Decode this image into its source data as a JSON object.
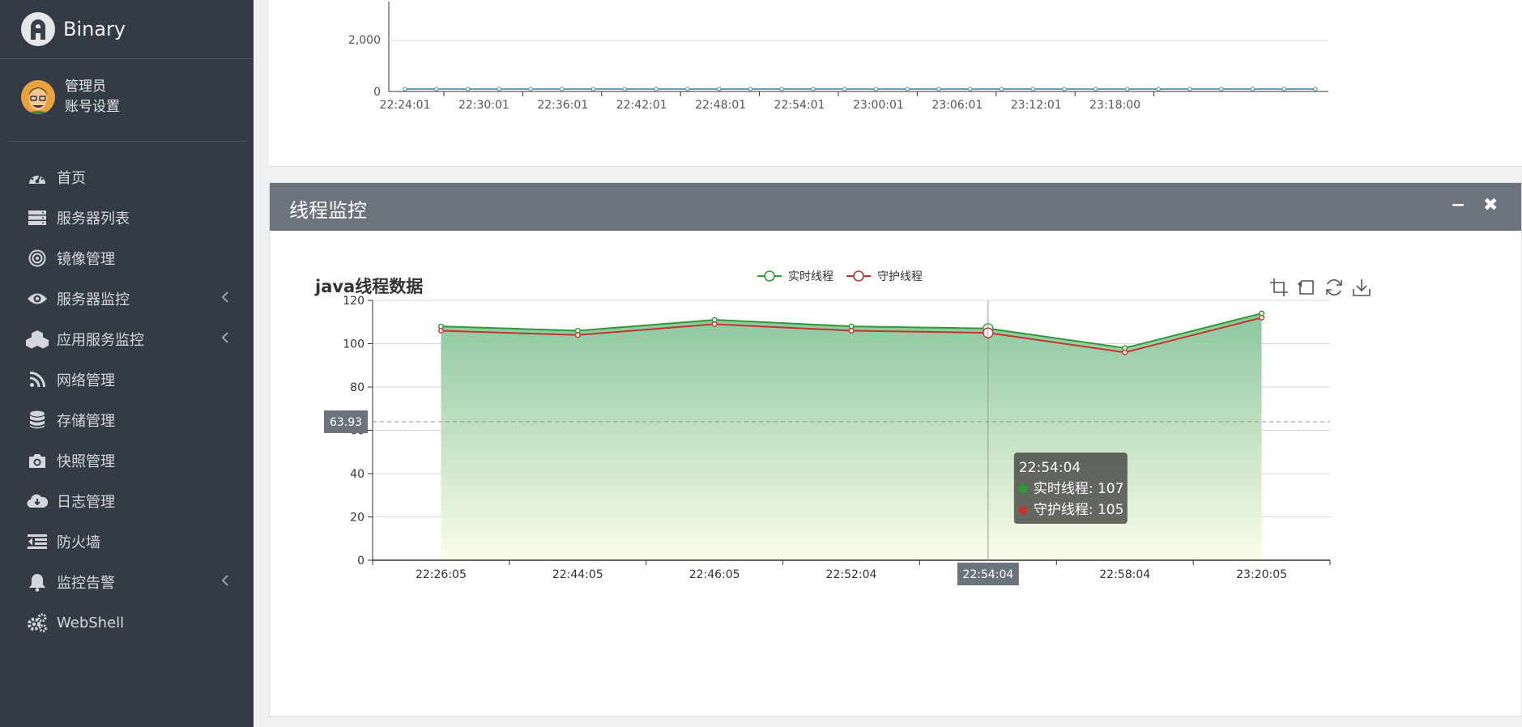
{
  "app": {
    "name": "Binary"
  },
  "user": {
    "name": "管理员",
    "settings_label": "账号设置"
  },
  "menu": [
    {
      "label": "首页",
      "icon": "dashboard-icon",
      "has_children": false
    },
    {
      "label": "服务器列表",
      "icon": "server-list-icon",
      "has_children": false
    },
    {
      "label": "镜像管理",
      "icon": "target-icon",
      "has_children": false
    },
    {
      "label": "服务器监控",
      "icon": "eye-icon",
      "has_children": true
    },
    {
      "label": "应用服务监控",
      "icon": "cubes-icon",
      "has_children": true
    },
    {
      "label": "网络管理",
      "icon": "rss-icon",
      "has_children": false
    },
    {
      "label": "存储管理",
      "icon": "database-icon",
      "has_children": false
    },
    {
      "label": "快照管理",
      "icon": "camera-icon",
      "has_children": false
    },
    {
      "label": "日志管理",
      "icon": "cloud-download-icon",
      "has_children": false
    },
    {
      "label": "防火墙",
      "icon": "outdent-icon",
      "has_children": false
    },
    {
      "label": "监控告警",
      "icon": "bell-icon",
      "has_children": true
    },
    {
      "label": "WebShell",
      "icon": "cogs-icon",
      "has_children": false
    }
  ],
  "top_chart": {
    "y_ticks": [
      "2,000",
      "0"
    ],
    "x_ticks": [
      "22:24:01",
      "22:30:01",
      "22:36:01",
      "22:42:01",
      "22:48:01",
      "22:54:01",
      "23:00:01",
      "23:06:01",
      "23:12:01",
      "23:18:00"
    ],
    "line_color": "#6a9fb3"
  },
  "thread_panel": {
    "title": "线程监控",
    "minimize_symbol": "−",
    "close_symbol": "✖"
  },
  "chart_data": {
    "type": "area",
    "title": "java线程数据",
    "categories": [
      "22:26:05",
      "22:44:05",
      "22:46:05",
      "22:52:04",
      "22:54:04",
      "22:58:04",
      "23:20:05"
    ],
    "series": [
      {
        "name": "实时线程",
        "color": "#2e9a34",
        "values": [
          108,
          106,
          111,
          108,
          107,
          98,
          114
        ]
      },
      {
        "name": "守护线程",
        "color": "#c23531",
        "values": [
          106,
          104,
          109,
          106,
          105,
          96,
          112
        ]
      }
    ],
    "ylim": [
      0,
      120
    ],
    "y_ticks": [
      0,
      20,
      40,
      60,
      80,
      100,
      120
    ],
    "grid": true,
    "legend_position": "top-center",
    "cursor_y_value": "63.93",
    "axis_pointer_category": "22:54:04",
    "tooltip": {
      "title": "22:54:04",
      "rows": [
        "实时线程: 107",
        "守护线程: 105"
      ]
    },
    "area_gradient": [
      "#8cc79e",
      "#fbfde8"
    ]
  }
}
